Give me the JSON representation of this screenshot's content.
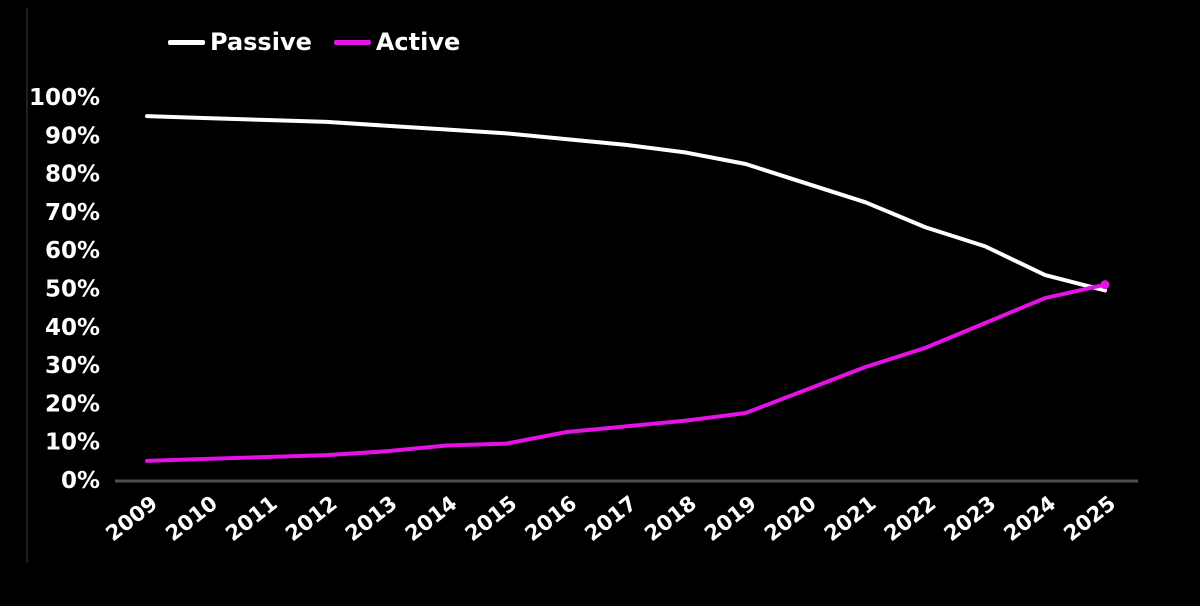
{
  "colors": {
    "background": "#000000",
    "axis_line": "#4f4f4f",
    "frame_line": "#1e1e1e",
    "tick_text": "#ffffff"
  },
  "legend": {
    "items": [
      {
        "label": "Passive",
        "color": "#ffffff"
      },
      {
        "label": "Active",
        "color": "#e412e4"
      }
    ]
  },
  "chart_data": {
    "type": "line",
    "title": "",
    "xlabel": "",
    "ylabel": "",
    "categories": [
      "2009",
      "2010",
      "2011",
      "2012",
      "2013",
      "2014",
      "2015",
      "2016",
      "2017",
      "2018",
      "2019",
      "2020",
      "2021",
      "2022",
      "2023",
      "2024",
      "2025"
    ],
    "series": [
      {
        "name": "Passive",
        "color": "#ffffff",
        "values": [
          95,
          94.5,
          94,
          93.5,
          92.5,
          91.5,
          90.5,
          89,
          87.5,
          85.5,
          82.5,
          77.5,
          72.5,
          66,
          61,
          53.5,
          49.5
        ]
      },
      {
        "name": "Active",
        "color": "#e412e4",
        "values": [
          5,
          5.5,
          6,
          6.5,
          7.5,
          9,
          9.5,
          12.5,
          14,
          15.5,
          17.5,
          23.5,
          29.5,
          34.5,
          41,
          47.5,
          51
        ]
      }
    ],
    "ylim": [
      0,
      100
    ],
    "yticks": [
      0,
      10,
      20,
      30,
      40,
      50,
      60,
      70,
      80,
      90,
      100
    ],
    "ytick_suffix": "%",
    "xtick_rotation_deg": -38,
    "grid": false,
    "legend_position": "top-left",
    "end_marker_series": "Active"
  }
}
